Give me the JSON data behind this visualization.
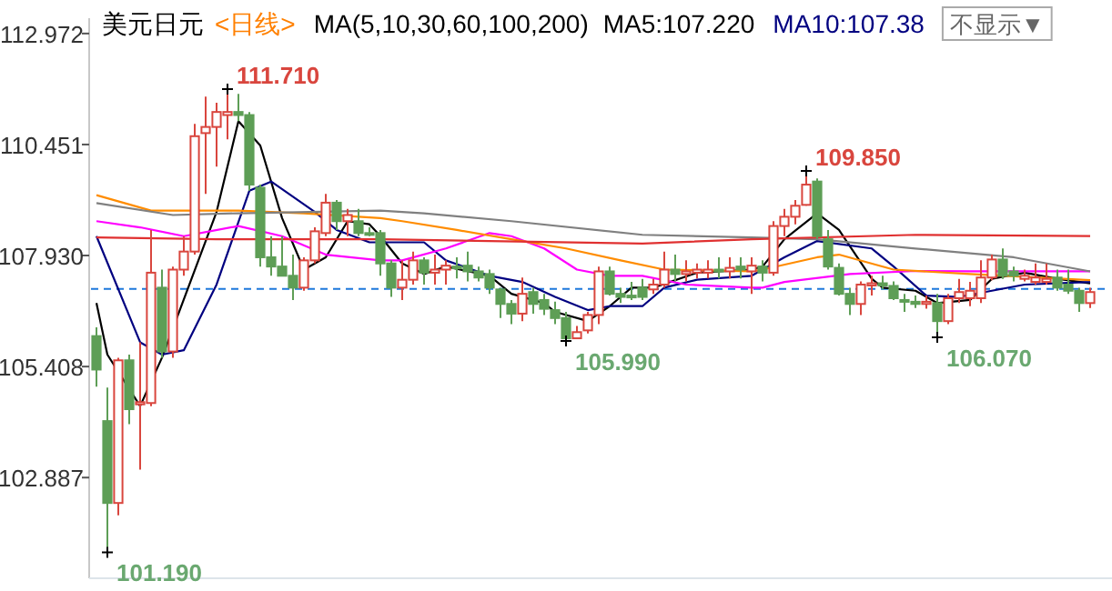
{
  "chart_data": {
    "type": "candlestick",
    "title": "美元日元",
    "subtitle": "<日线>",
    "annotations": [
      "MA(5,10,30,60,100,200)",
      "不显示▼",
      "101.190",
      "111.710",
      "105.990",
      "109.850",
      "106.070"
    ],
    "categories": [
      null,
      null,
      null,
      null,
      null,
      null,
      null,
      null,
      null,
      null,
      null,
      null,
      null,
      null,
      null,
      null,
      null,
      null,
      null,
      null,
      null,
      null,
      null,
      null,
      null,
      null,
      null,
      null,
      null,
      null,
      null,
      null,
      null,
      null,
      null,
      null,
      null,
      null,
      null,
      null,
      null,
      null,
      null,
      null,
      null,
      null,
      null,
      null,
      null,
      null,
      null,
      null,
      null,
      null,
      null,
      null,
      null,
      null,
      null,
      null,
      null,
      null,
      null,
      null,
      null,
      null,
      null,
      null,
      null,
      null,
      null,
      null,
      null,
      null,
      null,
      null,
      null,
      null,
      null,
      null,
      null,
      null,
      null,
      null,
      null,
      null,
      null,
      null,
      null,
      null,
      null,
      null
    ],
    "ohlc": [
      [
        106.1,
        106.3,
        104.95,
        105.34
      ],
      [
        104.17,
        104.93,
        101.19,
        102.31
      ],
      [
        102.31,
        105.61,
        102.03,
        105.55
      ],
      [
        105.55,
        105.68,
        104.1,
        104.44
      ],
      [
        104.55,
        105.96,
        103.07,
        104.6
      ],
      [
        104.58,
        108.51,
        104.51,
        107.54
      ],
      [
        107.2,
        107.61,
        105.61,
        105.75
      ],
      [
        105.75,
        107.68,
        105.61,
        107.61
      ],
      [
        107.61,
        108.37,
        107.47,
        108.02
      ],
      [
        108.02,
        110.92,
        107.95,
        110.64
      ],
      [
        110.71,
        111.54,
        109.33,
        110.85
      ],
      [
        110.85,
        111.4,
        109.95,
        111.19
      ],
      [
        111.12,
        111.71,
        110.57,
        111.19
      ],
      [
        111.19,
        111.6,
        110.98,
        111.12
      ],
      [
        111.12,
        111.19,
        109.4,
        109.54
      ],
      [
        109.47,
        109.54,
        107.68,
        107.89
      ],
      [
        107.89,
        108.37,
        107.47,
        107.68
      ],
      [
        107.68,
        108.37,
        107.47,
        107.47
      ],
      [
        107.47,
        107.95,
        106.92,
        107.2
      ],
      [
        107.2,
        107.89,
        107.13,
        107.82
      ],
      [
        107.82,
        108.57,
        107.75,
        108.48
      ],
      [
        108.44,
        109.33,
        108.37,
        109.13
      ],
      [
        109.13,
        109.19,
        108.51,
        108.71
      ],
      [
        108.71,
        108.99,
        108.37,
        108.85
      ],
      [
        108.71,
        108.99,
        108.37,
        108.44
      ],
      [
        108.44,
        108.57,
        108.37,
        108.4
      ],
      [
        108.44,
        108.51,
        107.47,
        107.75
      ],
      [
        107.75,
        107.82,
        106.99,
        107.2
      ],
      [
        107.2,
        107.82,
        106.92,
        107.38
      ],
      [
        107.38,
        108.02,
        107.27,
        107.82
      ],
      [
        107.82,
        107.89,
        107.27,
        107.54
      ],
      [
        107.54,
        107.95,
        107.27,
        107.61
      ],
      [
        107.61,
        107.82,
        107.27,
        107.7
      ],
      [
        107.68,
        107.89,
        107.41,
        107.65
      ],
      [
        107.7,
        108.02,
        107.34,
        107.57
      ],
      [
        107.57,
        107.68,
        107.34,
        107.43
      ],
      [
        107.51,
        107.61,
        107.06,
        107.2
      ],
      [
        107.16,
        107.2,
        106.51,
        106.83
      ],
      [
        106.83,
        106.92,
        106.37,
        106.61
      ],
      [
        106.61,
        107.43,
        106.44,
        107.06
      ],
      [
        107.1,
        107.2,
        106.61,
        106.83
      ],
      [
        106.92,
        107.06,
        106.58,
        106.72
      ],
      [
        106.69,
        106.88,
        106.37,
        106.51
      ],
      [
        106.51,
        106.65,
        105.99,
        106.05
      ],
      [
        106.05,
        106.33,
        106.03,
        106.19
      ],
      [
        106.23,
        106.65,
        106.16,
        106.58
      ],
      [
        106.58,
        107.68,
        106.37,
        107.57
      ],
      [
        107.57,
        107.68,
        107.02,
        107.06
      ],
      [
        107.06,
        107.2,
        106.85,
        106.99
      ],
      [
        107.02,
        107.33,
        106.92,
        106.99
      ],
      [
        107.2,
        107.4,
        106.92,
        106.99
      ],
      [
        107.16,
        107.4,
        107.06,
        107.27
      ],
      [
        107.27,
        108.02,
        107.2,
        107.61
      ],
      [
        107.61,
        107.95,
        107.34,
        107.51
      ],
      [
        107.51,
        107.82,
        107.34,
        107.57
      ],
      [
        107.54,
        107.75,
        107.41,
        107.61
      ],
      [
        107.54,
        107.82,
        107.41,
        107.61
      ],
      [
        107.61,
        107.89,
        107.41,
        107.57
      ],
      [
        107.57,
        107.89,
        107.41,
        107.65
      ],
      [
        107.68,
        107.89,
        107.41,
        107.61
      ],
      [
        107.57,
        107.89,
        107.06,
        107.7
      ],
      [
        107.68,
        107.82,
        107.34,
        107.54
      ],
      [
        107.54,
        108.71,
        107.47,
        108.6
      ],
      [
        108.6,
        108.99,
        108.37,
        108.81
      ],
      [
        108.81,
        109.19,
        108.64,
        109.06
      ],
      [
        109.08,
        109.85,
        109.06,
        109.54
      ],
      [
        109.61,
        109.68,
        108.3,
        108.37
      ],
      [
        108.3,
        108.51,
        107.61,
        107.68
      ],
      [
        107.65,
        107.75,
        107.02,
        107.06
      ],
      [
        107.06,
        107.2,
        106.58,
        106.83
      ],
      [
        106.83,
        107.34,
        106.58,
        107.27
      ],
      [
        107.25,
        107.47,
        107.02,
        107.3
      ],
      [
        107.3,
        107.47,
        107.16,
        107.25
      ],
      [
        107.24,
        107.34,
        106.92,
        106.96
      ],
      [
        106.92,
        107.06,
        106.65,
        106.88
      ],
      [
        106.88,
        107.02,
        106.74,
        106.83
      ],
      [
        106.83,
        107.02,
        106.72,
        106.88
      ],
      [
        106.85,
        107.06,
        106.07,
        106.44
      ],
      [
        106.44,
        107.06,
        106.37,
        106.96
      ],
      [
        106.96,
        107.4,
        106.85,
        107.1
      ],
      [
        106.96,
        107.33,
        106.78,
        107.13
      ],
      [
        106.96,
        107.82,
        106.85,
        107.43
      ],
      [
        107.43,
        107.95,
        107.37,
        107.84
      ],
      [
        107.84,
        108.09,
        107.4,
        107.47
      ],
      [
        107.57,
        107.68,
        107.34,
        107.47
      ],
      [
        107.4,
        107.61,
        107.34,
        107.47
      ],
      [
        107.33,
        107.75,
        107.27,
        107.43
      ],
      [
        107.33,
        107.75,
        107.27,
        107.4
      ],
      [
        107.43,
        107.61,
        107.13,
        107.2
      ],
      [
        107.27,
        107.61,
        107.06,
        107.13
      ],
      [
        107.13,
        107.2,
        106.65,
        106.85
      ],
      [
        106.85,
        107.2,
        106.74,
        107.1
      ]
    ],
    "series": [
      {
        "name": "MA5:107.220",
        "type": "line",
        "color": "#000000",
        "values": [
          106.85,
          105.68,
          null,
          null,
          104.51,
          null,
          105.61,
          null,
          null,
          null,
          null,
          108.92,
          null,
          110.98,
          null,
          110.43,
          null,
          108.78,
          null,
          107.61,
          null,
          107.89,
          null,
          108.71,
          null,
          108.64,
          108.37,
          null,
          107.75,
          null,
          107.51,
          null,
          107.68,
          null,
          null,
          null,
          107.47,
          null,
          107.06,
          null,
          null,
          106.85,
          106.65,
          null,
          null,
          106.44,
          null,
          106.78,
          null,
          107.2,
          null,
          107.2,
          null,
          null,
          null,
          107.54,
          null,
          null,
          null,
          null,
          107.61,
          107.68,
          null,
          108.3,
          null,
          null,
          108.89,
          null,
          108.51,
          null,
          null,
          107.4,
          107.2,
          null,
          null,
          107.13,
          null,
          106.85,
          null,
          null,
          106.92,
          null,
          107.4,
          null,
          null,
          107.54,
          null,
          null,
          107.4,
          null,
          null,
          107.3
        ]
      },
      {
        "name": "MA10:107.38",
        "type": "line",
        "color": "#000080",
        "values": [
          108.37,
          null,
          null,
          null,
          105.96,
          null,
          105.68,
          null,
          105.78,
          null,
          null,
          107.27,
          null,
          null,
          109.4,
          null,
          109.61,
          null,
          null,
          null,
          108.92,
          null,
          108.51,
          null,
          null,
          108.23,
          108.23,
          null,
          null,
          null,
          108.23,
          null,
          107.82,
          null,
          null,
          null,
          107.47,
          null,
          null,
          107.33,
          null,
          null,
          106.99,
          null,
          null,
          106.69,
          null,
          106.78,
          null,
          null,
          106.78,
          null,
          107.2,
          null,
          null,
          107.38,
          null,
          null,
          null,
          null,
          107.47,
          107.61,
          null,
          107.89,
          null,
          null,
          108.26,
          null,
          null,
          null,
          null,
          108.09,
          null,
          107.68,
          null,
          null,
          107.02,
          null,
          null,
          106.99,
          null,
          null,
          107.13,
          null,
          null,
          107.27,
          null,
          null,
          null,
          null,
          null,
          107.33
        ]
      },
      {
        "type": "line",
        "color": "#ff00ff",
        "values": [
          108.71,
          null,
          null,
          null,
          108.57,
          null,
          null,
          null,
          108.37,
          null,
          null,
          null,
          null,
          108.6,
          null,
          null,
          null,
          108.37,
          null,
          null,
          null,
          107.95,
          null,
          null,
          null,
          null,
          107.82,
          null,
          107.82,
          null,
          null,
          null,
          108.09,
          null,
          null,
          null,
          108.44,
          null,
          108.37,
          null,
          null,
          108.09,
          null,
          null,
          107.61,
          null,
          null,
          107.47,
          null,
          null,
          107.47,
          null,
          null,
          null,
          107.27,
          null,
          null,
          null,
          null,
          null,
          107.2,
          107.2,
          null,
          107.33,
          null,
          null,
          null,
          null,
          null,
          107.51,
          null,
          null,
          null,
          null,
          null,
          107.58,
          null,
          null,
          null,
          null,
          107.57,
          null,
          null,
          null,
          null,
          null,
          null,
          null,
          null,
          null,
          null,
          107.57
        ]
      },
      {
        "type": "line",
        "color": "#ff8c00",
        "values": [
          109.3,
          null,
          null,
          null,
          null,
          108.95,
          null,
          null,
          null,
          null,
          null,
          null,
          null,
          108.95,
          null,
          null,
          null,
          null,
          null,
          108.89,
          null,
          null,
          null,
          null,
          null,
          null,
          108.78,
          null,
          108.71,
          null,
          null,
          null,
          null,
          108.51,
          null,
          null,
          null,
          null,
          108.3,
          null,
          null,
          null,
          null,
          108.09,
          null,
          null,
          null,
          null,
          107.82,
          null,
          null,
          null,
          107.61,
          null,
          null,
          null,
          null,
          null,
          null,
          null,
          107.57,
          107.61,
          null,
          null,
          null,
          null,
          107.89,
          null,
          107.95,
          null,
          null,
          null,
          null,
          107.61,
          null,
          null,
          null,
          null,
          null,
          null,
          107.51,
          null,
          null,
          null,
          null,
          null,
          null,
          null,
          null,
          null,
          null,
          107.37
        ]
      },
      {
        "type": "line",
        "color": "#808080",
        "values": [
          109.12,
          null,
          null,
          null,
          null,
          null,
          null,
          108.85,
          null,
          null,
          null,
          null,
          null,
          108.89,
          null,
          null,
          null,
          null,
          null,
          null,
          null,
          null,
          null,
          null,
          null,
          null,
          108.95,
          null,
          null,
          null,
          108.89,
          null,
          null,
          null,
          null,
          null,
          null,
          null,
          108.71,
          null,
          null,
          null,
          null,
          null,
          null,
          null,
          null,
          null,
          null,
          null,
          108.4,
          null,
          null,
          null,
          null,
          null,
          null,
          null,
          null,
          null,
          108.34,
          null,
          null,
          null,
          null,
          null,
          108.3,
          null,
          null,
          null,
          null,
          null,
          null,
          null,
          null,
          108.09,
          null,
          null,
          null,
          null,
          null,
          null,
          null,
          null,
          107.89,
          null,
          null,
          null,
          null,
          null,
          null,
          107.57
        ]
      },
      {
        "type": "line",
        "color": "#e03030",
        "values": [
          108.34,
          null,
          null,
          null,
          null,
          null,
          null,
          null,
          null,
          null,
          null,
          108.3,
          null,
          null,
          null,
          null,
          null,
          null,
          null,
          null,
          null,
          null,
          null,
          null,
          null,
          null,
          108.3,
          null,
          null,
          null,
          null,
          null,
          null,
          null,
          null,
          null,
          108.26,
          null,
          null,
          null,
          null,
          null,
          null,
          null,
          null,
          null,
          null,
          null,
          null,
          null,
          108.2,
          null,
          null,
          null,
          null,
          null,
          null,
          null,
          null,
          null,
          108.3,
          null,
          null,
          null,
          null,
          null,
          null,
          null,
          null,
          null,
          null,
          null,
          null,
          null,
          null,
          108.4,
          null,
          null,
          null,
          null,
          null,
          null,
          null,
          null,
          null,
          null,
          null,
          null,
          null,
          null,
          null,
          108.37
        ]
      }
    ],
    "ylim": [
      100.6,
      113.32
    ],
    "yticks": [
      112.972,
      110.451,
      {
        "value": 107.93,
        "label": "107.930"
      },
      105.408,
      102.887
    ],
    "ref_lines": [
      {
        "axis": "y",
        "value": 107.17,
        "color": "#1e78dc",
        "line_style": "dashed"
      }
    ],
    "legend": "top"
  }
}
